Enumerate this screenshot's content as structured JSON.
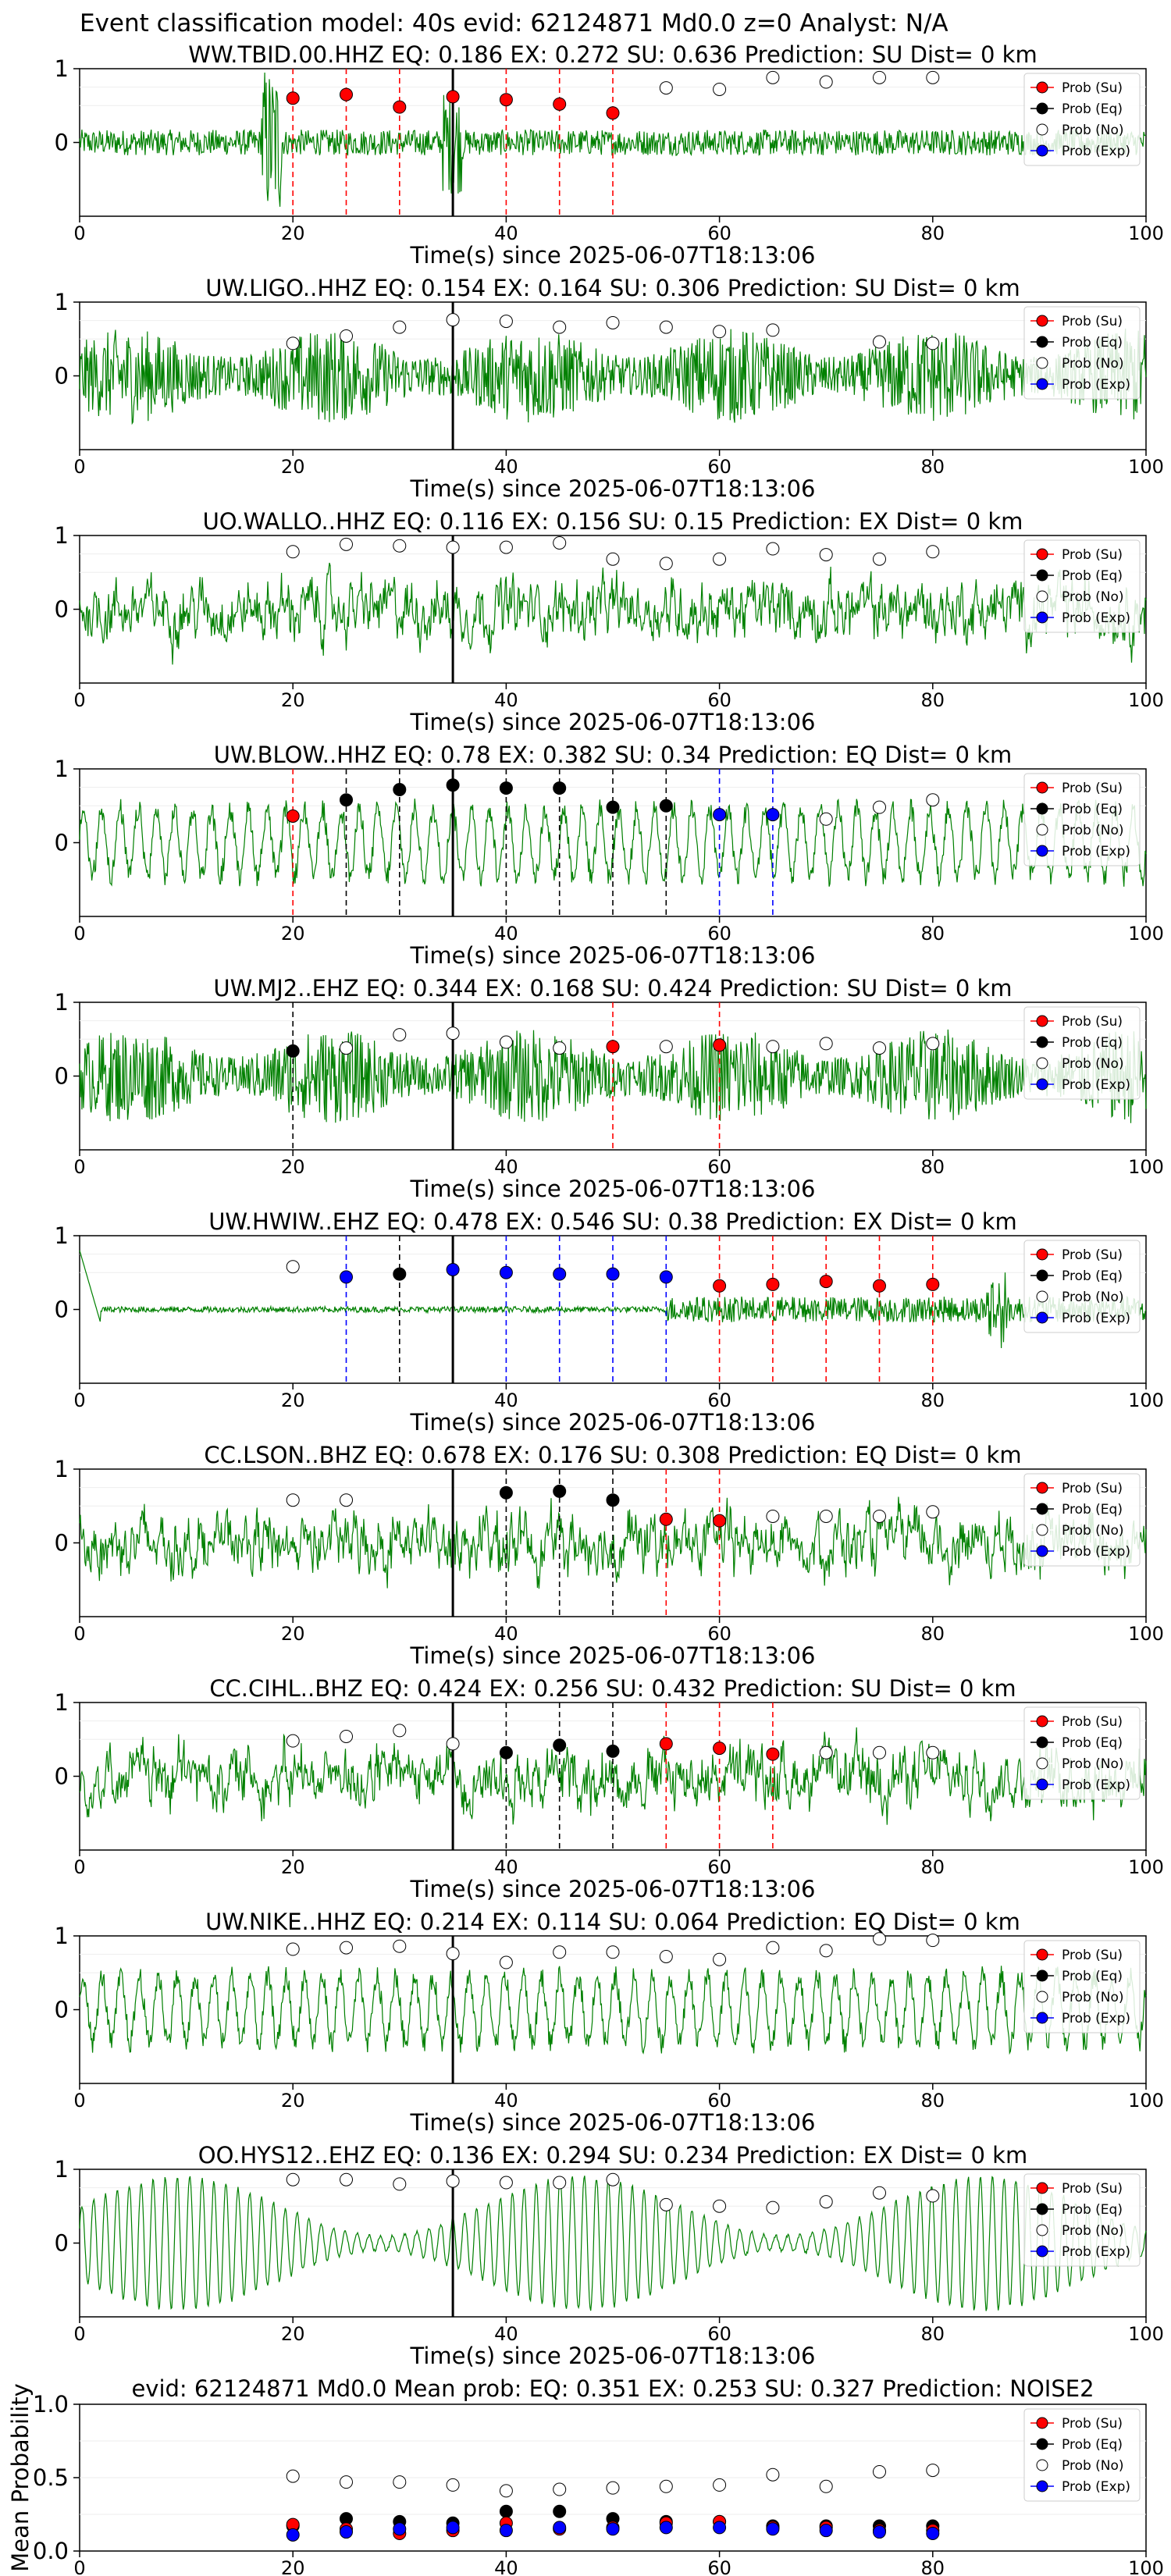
{
  "suptitle": "Event classification model: 40s evid: 62124871 Md0.0 z=0 Analyst: N/A",
  "x_axis_label": "Time(s) since 2025-06-07T18:13:06",
  "legend_labels": [
    "Prob (Su)",
    "Prob (Eq)",
    "Prob (No)",
    "Prob (Exp)"
  ],
  "colors": {
    "waveform": "#008000",
    "su": "#ff0000",
    "eq": "#000000",
    "no": "#ffffff",
    "exp": "#0000ff",
    "su_line": "#ff0000",
    "eq_line": "#000000",
    "exp_line": "#0000ff"
  },
  "chart_data": [
    {
      "type": "line",
      "title": "WW.TBID.00.HHZ   EQ: 0.186  EX: 0.272  SU: 0.636   Prediction: SU    Dist= 0 km",
      "xlim": [
        0,
        100
      ],
      "ylim": [
        -1,
        1
      ],
      "xticks": [
        0,
        20,
        40,
        60,
        80,
        100
      ],
      "yticks": [
        1,
        0
      ],
      "pick_time": 35,
      "waveform_style": "spiky",
      "points": [
        {
          "t": 20,
          "p": 0.6,
          "c": "su"
        },
        {
          "t": 25,
          "p": 0.65,
          "c": "su"
        },
        {
          "t": 30,
          "p": 0.48,
          "c": "su"
        },
        {
          "t": 35,
          "p": 0.62,
          "c": "su"
        },
        {
          "t": 40,
          "p": 0.58,
          "c": "su"
        },
        {
          "t": 45,
          "p": 0.52,
          "c": "su"
        },
        {
          "t": 50,
          "p": 0.4,
          "c": "su"
        },
        {
          "t": 55,
          "p": 0.74,
          "c": "no"
        },
        {
          "t": 60,
          "p": 0.72,
          "c": "no"
        },
        {
          "t": 65,
          "p": 0.88,
          "c": "no"
        },
        {
          "t": 70,
          "p": 0.82,
          "c": "no"
        },
        {
          "t": 75,
          "p": 0.88,
          "c": "no"
        },
        {
          "t": 80,
          "p": 0.88,
          "c": "no"
        }
      ]
    },
    {
      "type": "line",
      "title": "UW.LIGO..HHZ   EQ: 0.154  EX: 0.164  SU: 0.306   Prediction: SU    Dist= 0 km",
      "xlim": [
        0,
        100
      ],
      "ylim": [
        -1,
        1
      ],
      "xticks": [
        0,
        20,
        40,
        60,
        80,
        100
      ],
      "yticks": [
        1,
        0
      ],
      "pick_time": 35,
      "waveform_style": "dense",
      "points": [
        {
          "t": 20,
          "p": 0.44,
          "c": "no"
        },
        {
          "t": 25,
          "p": 0.54,
          "c": "no"
        },
        {
          "t": 30,
          "p": 0.66,
          "c": "no"
        },
        {
          "t": 35,
          "p": 0.76,
          "c": "no"
        },
        {
          "t": 40,
          "p": 0.74,
          "c": "no"
        },
        {
          "t": 45,
          "p": 0.66,
          "c": "no"
        },
        {
          "t": 50,
          "p": 0.72,
          "c": "no"
        },
        {
          "t": 55,
          "p": 0.66,
          "c": "no"
        },
        {
          "t": 60,
          "p": 0.6,
          "c": "no"
        },
        {
          "t": 65,
          "p": 0.62,
          "c": "no"
        },
        {
          "t": 75,
          "p": 0.46,
          "c": "no"
        },
        {
          "t": 80,
          "p": 0.44,
          "c": "no"
        }
      ]
    },
    {
      "type": "line",
      "title": "UO.WALLO..HHZ   EQ: 0.116  EX: 0.156  SU: 0.15   Prediction: EX    Dist= 0 km",
      "xlim": [
        0,
        100
      ],
      "ylim": [
        -1,
        1
      ],
      "xticks": [
        0,
        20,
        40,
        60,
        80,
        100
      ],
      "yticks": [
        1,
        0
      ],
      "pick_time": 35,
      "waveform_style": "medium",
      "points": [
        {
          "t": 20,
          "p": 0.78,
          "c": "no"
        },
        {
          "t": 25,
          "p": 0.88,
          "c": "no"
        },
        {
          "t": 30,
          "p": 0.86,
          "c": "no"
        },
        {
          "t": 35,
          "p": 0.84,
          "c": "no"
        },
        {
          "t": 40,
          "p": 0.84,
          "c": "no"
        },
        {
          "t": 45,
          "p": 0.9,
          "c": "no"
        },
        {
          "t": 50,
          "p": 0.68,
          "c": "no"
        },
        {
          "t": 55,
          "p": 0.62,
          "c": "no"
        },
        {
          "t": 60,
          "p": 0.68,
          "c": "no"
        },
        {
          "t": 65,
          "p": 0.82,
          "c": "no"
        },
        {
          "t": 70,
          "p": 0.74,
          "c": "no"
        },
        {
          "t": 75,
          "p": 0.68,
          "c": "no"
        },
        {
          "t": 80,
          "p": 0.78,
          "c": "no"
        }
      ]
    },
    {
      "type": "line",
      "title": "UW.BLOW..HHZ   EQ: 0.78  EX: 0.382  SU: 0.34   Prediction: EQ    Dist= 0 km",
      "xlim": [
        0,
        100
      ],
      "ylim": [
        -1,
        1
      ],
      "xticks": [
        0,
        20,
        40,
        60,
        80,
        100
      ],
      "yticks": [
        1,
        0
      ],
      "pick_time": 35,
      "waveform_style": "wavy",
      "points": [
        {
          "t": 20,
          "p": 0.36,
          "c": "su"
        },
        {
          "t": 25,
          "p": 0.58,
          "c": "eq"
        },
        {
          "t": 30,
          "p": 0.72,
          "c": "eq"
        },
        {
          "t": 35,
          "p": 0.78,
          "c": "eq"
        },
        {
          "t": 40,
          "p": 0.74,
          "c": "eq"
        },
        {
          "t": 45,
          "p": 0.74,
          "c": "eq"
        },
        {
          "t": 50,
          "p": 0.48,
          "c": "eq"
        },
        {
          "t": 55,
          "p": 0.5,
          "c": "eq"
        },
        {
          "t": 60,
          "p": 0.38,
          "c": "exp"
        },
        {
          "t": 65,
          "p": 0.38,
          "c": "exp"
        },
        {
          "t": 70,
          "p": 0.32,
          "c": "no"
        },
        {
          "t": 75,
          "p": 0.48,
          "c": "no"
        },
        {
          "t": 80,
          "p": 0.58,
          "c": "no"
        }
      ]
    },
    {
      "type": "line",
      "title": "UW.MJ2..EHZ   EQ: 0.344  EX: 0.168  SU: 0.424   Prediction: SU    Dist= 0 km",
      "xlim": [
        0,
        100
      ],
      "ylim": [
        -1,
        1
      ],
      "xticks": [
        0,
        20,
        40,
        60,
        80,
        100
      ],
      "yticks": [
        1,
        0
      ],
      "pick_time": 35,
      "waveform_style": "dense",
      "points": [
        {
          "t": 20,
          "p": 0.34,
          "c": "eq"
        },
        {
          "t": 25,
          "p": 0.38,
          "c": "no"
        },
        {
          "t": 30,
          "p": 0.56,
          "c": "no"
        },
        {
          "t": 35,
          "p": 0.58,
          "c": "no"
        },
        {
          "t": 40,
          "p": 0.46,
          "c": "no"
        },
        {
          "t": 45,
          "p": 0.38,
          "c": "no"
        },
        {
          "t": 50,
          "p": 0.4,
          "c": "su"
        },
        {
          "t": 55,
          "p": 0.4,
          "c": "no"
        },
        {
          "t": 60,
          "p": 0.42,
          "c": "su"
        },
        {
          "t": 65,
          "p": 0.4,
          "c": "no"
        },
        {
          "t": 70,
          "p": 0.44,
          "c": "no"
        },
        {
          "t": 75,
          "p": 0.38,
          "c": "no"
        },
        {
          "t": 80,
          "p": 0.44,
          "c": "no"
        }
      ]
    },
    {
      "type": "line",
      "title": "UW.HWIW..EHZ   EQ: 0.478  EX: 0.546  SU: 0.38   Prediction: EX    Dist= 0 km",
      "xlim": [
        0,
        100
      ],
      "ylim": [
        -1,
        1
      ],
      "xticks": [
        0,
        20,
        40,
        60,
        80,
        100
      ],
      "yticks": [
        1,
        0
      ],
      "pick_time": 35,
      "waveform_style": "flat",
      "points": [
        {
          "t": 20,
          "p": 0.58,
          "c": "no"
        },
        {
          "t": 25,
          "p": 0.44,
          "c": "exp"
        },
        {
          "t": 30,
          "p": 0.48,
          "c": "eq"
        },
        {
          "t": 35,
          "p": 0.54,
          "c": "exp"
        },
        {
          "t": 40,
          "p": 0.5,
          "c": "exp"
        },
        {
          "t": 45,
          "p": 0.48,
          "c": "exp"
        },
        {
          "t": 50,
          "p": 0.48,
          "c": "exp"
        },
        {
          "t": 55,
          "p": 0.44,
          "c": "exp"
        },
        {
          "t": 60,
          "p": 0.32,
          "c": "su"
        },
        {
          "t": 65,
          "p": 0.34,
          "c": "su"
        },
        {
          "t": 70,
          "p": 0.38,
          "c": "su"
        },
        {
          "t": 75,
          "p": 0.32,
          "c": "su"
        },
        {
          "t": 80,
          "p": 0.34,
          "c": "su"
        }
      ]
    },
    {
      "type": "line",
      "title": "CC.LSON..BHZ   EQ: 0.678  EX: 0.176  SU: 0.308   Prediction: EQ    Dist= 0 km",
      "xlim": [
        0,
        100
      ],
      "ylim": [
        -1,
        1
      ],
      "xticks": [
        0,
        20,
        40,
        60,
        80,
        100
      ],
      "yticks": [
        1,
        0
      ],
      "pick_time": 35,
      "waveform_style": "medium",
      "points": [
        {
          "t": 20,
          "p": 0.58,
          "c": "no"
        },
        {
          "t": 25,
          "p": 0.58,
          "c": "no"
        },
        {
          "t": 40,
          "p": 0.68,
          "c": "eq"
        },
        {
          "t": 45,
          "p": 0.7,
          "c": "eq"
        },
        {
          "t": 50,
          "p": 0.58,
          "c": "eq"
        },
        {
          "t": 55,
          "p": 0.32,
          "c": "su"
        },
        {
          "t": 60,
          "p": 0.3,
          "c": "su"
        },
        {
          "t": 65,
          "p": 0.36,
          "c": "no"
        },
        {
          "t": 70,
          "p": 0.36,
          "c": "no"
        },
        {
          "t": 75,
          "p": 0.36,
          "c": "no"
        },
        {
          "t": 80,
          "p": 0.42,
          "c": "no"
        }
      ]
    },
    {
      "type": "line",
      "title": "CC.CIHL..BHZ   EQ: 0.424  EX: 0.256  SU: 0.432   Prediction: SU    Dist= 0 km",
      "xlim": [
        0,
        100
      ],
      "ylim": [
        -1,
        1
      ],
      "xticks": [
        0,
        20,
        40,
        60,
        80,
        100
      ],
      "yticks": [
        1,
        0
      ],
      "pick_time": 35,
      "waveform_style": "medium",
      "points": [
        {
          "t": 20,
          "p": 0.48,
          "c": "no"
        },
        {
          "t": 25,
          "p": 0.54,
          "c": "no"
        },
        {
          "t": 30,
          "p": 0.62,
          "c": "no"
        },
        {
          "t": 35,
          "p": 0.44,
          "c": "no"
        },
        {
          "t": 40,
          "p": 0.32,
          "c": "eq"
        },
        {
          "t": 45,
          "p": 0.42,
          "c": "eq"
        },
        {
          "t": 50,
          "p": 0.34,
          "c": "eq"
        },
        {
          "t": 55,
          "p": 0.44,
          "c": "su"
        },
        {
          "t": 60,
          "p": 0.38,
          "c": "su"
        },
        {
          "t": 65,
          "p": 0.3,
          "c": "su"
        },
        {
          "t": 70,
          "p": 0.32,
          "c": "no"
        },
        {
          "t": 75,
          "p": 0.32,
          "c": "no"
        },
        {
          "t": 80,
          "p": 0.32,
          "c": "no"
        }
      ]
    },
    {
      "type": "line",
      "title": "UW.NIKE..HHZ   EQ: 0.214  EX: 0.114  SU: 0.064   Prediction: EQ    Dist= 0 km",
      "xlim": [
        0,
        100
      ],
      "ylim": [
        -1,
        1
      ],
      "xticks": [
        0,
        20,
        40,
        60,
        80,
        100
      ],
      "yticks": [
        1,
        0
      ],
      "pick_time": 35,
      "waveform_style": "wavy",
      "points": [
        {
          "t": 20,
          "p": 0.82,
          "c": "no"
        },
        {
          "t": 25,
          "p": 0.84,
          "c": "no"
        },
        {
          "t": 30,
          "p": 0.86,
          "c": "no"
        },
        {
          "t": 35,
          "p": 0.76,
          "c": "no"
        },
        {
          "t": 40,
          "p": 0.64,
          "c": "no"
        },
        {
          "t": 45,
          "p": 0.78,
          "c": "no"
        },
        {
          "t": 50,
          "p": 0.78,
          "c": "no"
        },
        {
          "t": 55,
          "p": 0.72,
          "c": "no"
        },
        {
          "t": 60,
          "p": 0.68,
          "c": "no"
        },
        {
          "t": 65,
          "p": 0.84,
          "c": "no"
        },
        {
          "t": 70,
          "p": 0.8,
          "c": "no"
        },
        {
          "t": 75,
          "p": 0.96,
          "c": "no"
        },
        {
          "t": 80,
          "p": 0.94,
          "c": "no"
        }
      ]
    },
    {
      "type": "line",
      "title": "OO.HYS12..EHZ   EQ: 0.136  EX: 0.294  SU: 0.234   Prediction: EX    Dist= 0 km",
      "xlim": [
        0,
        100
      ],
      "ylim": [
        -1,
        1
      ],
      "xticks": [
        0,
        20,
        40,
        60,
        80,
        100
      ],
      "yticks": [
        1,
        0
      ],
      "pick_time": 35,
      "waveform_style": "oscillating",
      "points": [
        {
          "t": 20,
          "p": 0.86,
          "c": "no"
        },
        {
          "t": 25,
          "p": 0.86,
          "c": "no"
        },
        {
          "t": 30,
          "p": 0.8,
          "c": "no"
        },
        {
          "t": 35,
          "p": 0.84,
          "c": "no"
        },
        {
          "t": 40,
          "p": 0.82,
          "c": "no"
        },
        {
          "t": 45,
          "p": 0.82,
          "c": "no"
        },
        {
          "t": 50,
          "p": 0.86,
          "c": "no"
        },
        {
          "t": 55,
          "p": 0.52,
          "c": "no"
        },
        {
          "t": 60,
          "p": 0.5,
          "c": "no"
        },
        {
          "t": 65,
          "p": 0.48,
          "c": "no"
        },
        {
          "t": 70,
          "p": 0.56,
          "c": "no"
        },
        {
          "t": 75,
          "p": 0.68,
          "c": "no"
        },
        {
          "t": 80,
          "p": 0.64,
          "c": "no"
        }
      ]
    },
    {
      "type": "scatter",
      "title": "evid: 62124871  Md0.0   Mean prob:   EQ: 0.351  EX: 0.253  SU: 0.327   Prediction: NOISE2",
      "ylabel": "Mean Probability",
      "xlim": [
        0,
        100
      ],
      "ylim": [
        0,
        1
      ],
      "xticks": [
        0,
        20,
        40,
        60,
        80,
        100
      ],
      "yticks": [
        0.0,
        0.5,
        1.0
      ],
      "ytick_labels": [
        "0.0",
        "0.5",
        "1.0"
      ],
      "series": [
        {
          "name": "Prob (No)",
          "key": "no",
          "x": [
            20,
            25,
            30,
            35,
            40,
            45,
            50,
            55,
            60,
            65,
            70,
            75,
            80
          ],
          "y": [
            0.51,
            0.47,
            0.47,
            0.45,
            0.41,
            0.42,
            0.43,
            0.44,
            0.45,
            0.52,
            0.44,
            0.54,
            0.55
          ]
        },
        {
          "name": "Prob (Eq)",
          "key": "eq",
          "x": [
            20,
            25,
            30,
            35,
            40,
            45,
            50,
            55,
            60,
            65,
            70,
            75,
            80
          ],
          "y": [
            0.17,
            0.22,
            0.2,
            0.19,
            0.27,
            0.27,
            0.22,
            0.2,
            0.2,
            0.17,
            0.17,
            0.17,
            0.17
          ]
        },
        {
          "name": "Prob (Su)",
          "key": "su",
          "x": [
            20,
            25,
            30,
            35,
            40,
            45,
            50,
            55,
            60,
            65,
            70,
            75,
            80
          ],
          "y": [
            0.18,
            0.15,
            0.12,
            0.14,
            0.19,
            0.15,
            0.16,
            0.19,
            0.2,
            0.16,
            0.16,
            0.14,
            0.14
          ]
        },
        {
          "name": "Prob (Exp)",
          "key": "exp",
          "x": [
            20,
            25,
            30,
            35,
            40,
            45,
            50,
            55,
            60,
            65,
            70,
            75,
            80
          ],
          "y": [
            0.11,
            0.13,
            0.15,
            0.16,
            0.14,
            0.16,
            0.15,
            0.16,
            0.16,
            0.15,
            0.14,
            0.13,
            0.12
          ]
        }
      ]
    }
  ]
}
